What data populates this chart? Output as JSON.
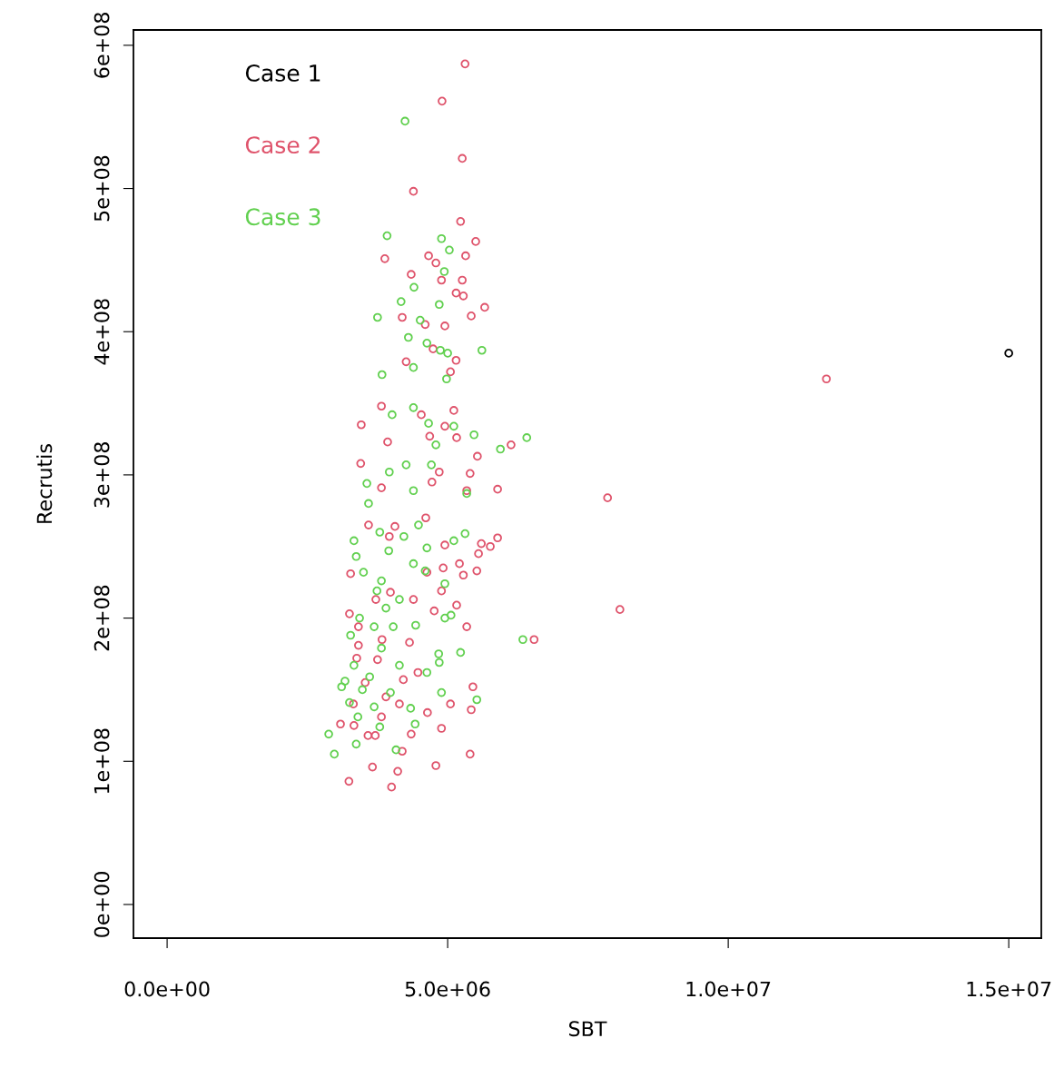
{
  "chart_data": {
    "type": "scatter",
    "xlabel": "SBT",
    "ylabel": "Recrutis",
    "xlim": [
      -600000.0,
      15580000.0
    ],
    "ylim": [
      -23500000.0,
      610700000.0
    ],
    "xticks": [
      {
        "value": 0,
        "label": "0.0e+00"
      },
      {
        "value": 5000000.0,
        "label": "5.0e+06"
      },
      {
        "value": 10000000.0,
        "label": "1.0e+07"
      },
      {
        "value": 15000000.0,
        "label": "1.5e+07"
      }
    ],
    "yticks": [
      {
        "value": 0,
        "label": "0e+00"
      },
      {
        "value": 100000000.0,
        "label": "1e+08"
      },
      {
        "value": 200000000.0,
        "label": "2e+08"
      },
      {
        "value": 300000000.0,
        "label": "3e+08"
      },
      {
        "value": 400000000.0,
        "label": "4e+08"
      },
      {
        "value": 500000000.0,
        "label": "5e+08"
      },
      {
        "value": 600000000.0,
        "label": "6e+08"
      }
    ],
    "marker": "circle",
    "legend": "top left",
    "grid": false,
    "series": [
      {
        "name": "Case 1",
        "color": "#000000",
        "x": [
          15000000.0
        ],
        "values": [
          385000000.0
        ]
      },
      {
        "name": "Case 2",
        "color": "#df536b",
        "x": [
          5310000.0,
          4900000.0,
          5260000.0,
          4390000.0,
          5230000.0,
          5500000.0,
          5320000.0,
          3880000.0,
          4660000.0,
          4790000.0,
          5260000.0,
          4350000.0,
          4890000.0,
          5150000.0,
          5280000.0,
          5660000.0,
          5420000.0,
          4190000.0,
          4950000.0,
          4600000.0,
          4740000.0,
          4260000.0,
          5150000.0,
          5050000.0,
          3820000.0,
          3460000.0,
          4530000.0,
          5110000.0,
          4950000.0,
          5160000.0,
          4680000.0,
          3930000.0,
          6130000.0,
          5530000.0,
          3450000.0,
          3820000.0,
          5400000.0,
          4850000.0,
          5890000.0,
          5340000.0,
          4720000.0,
          7850000.0,
          4060000.0,
          3590000.0,
          3960000.0,
          5890000.0,
          5760000.0,
          5600000.0,
          4950000.0,
          4610000.0,
          5550000.0,
          5210000.0,
          5520000.0,
          5280000.0,
          4920000.0,
          4630000.0,
          3270000.0,
          4890000.0,
          4390000.0,
          3980000.0,
          8070000.0,
          5160000.0,
          4760000.0,
          5340000.0,
          6540000.0,
          4320000.0,
          3830000.0,
          3750000.0,
          3380000.0,
          4470000.0,
          4210000.0,
          3530000.0,
          3900000.0,
          5050000.0,
          5420000.0,
          5450000.0,
          4640000.0,
          4140000.0,
          3320000.0,
          3330000.0,
          3820000.0,
          4890000.0,
          3710000.0,
          4350000.0,
          4190000.0,
          3580000.0,
          3090000.0,
          5400000.0,
          4790000.0,
          3660000.0,
          4110000.0,
          3240000.0,
          4000000.0,
          11750000.0,
          3410000.0,
          3410000.0,
          3720000.0,
          3250000.0
        ],
        "values": [
          587000000.0,
          561000000.0,
          521000000.0,
          498000000.0,
          477000000.0,
          463000000.0,
          453000000.0,
          451000000.0,
          453000000.0,
          448000000.0,
          436000000.0,
          440000000.0,
          436000000.0,
          427000000.0,
          425000000.0,
          417000000.0,
          411000000.0,
          410000000.0,
          404000000.0,
          405000000.0,
          388000000.0,
          379000000.0,
          380000000.0,
          372000000.0,
          348000000.0,
          335000000.0,
          342000000.0,
          345000000.0,
          334000000.0,
          326000000.0,
          327000000.0,
          323000000.0,
          321000000.0,
          313000000.0,
          308000000.0,
          291000000.0,
          301000000.0,
          302000000.0,
          290000000.0,
          289000000.0,
          295000000.0,
          284000000.0,
          264000000.0,
          265000000.0,
          257000000.0,
          256000000.0,
          250000000.0,
          252000000.0,
          251000000.0,
          270000000.0,
          245000000.0,
          238000000.0,
          233000000.0,
          230000000.0,
          235000000.0,
          232000000.0,
          231000000.0,
          219000000.0,
          213000000.0,
          218000000.0,
          206000000.0,
          209000000.0,
          205000000.0,
          194000000.0,
          185000000.0,
          183000000.0,
          185000000.0,
          171000000.0,
          172000000.0,
          162000000.0,
          157000000.0,
          155000000.0,
          145000000.0,
          140000000.0,
          136000000.0,
          152000000.0,
          134000000.0,
          140000000.0,
          140000000.0,
          125000000.0,
          131000000.0,
          123000000.0,
          118000000.0,
          119000000.0,
          107000000.0,
          118000000.0,
          126000000.0,
          105000000.0,
          97000000.0,
          96000000.0,
          93000000.0,
          86000000.0,
          82000000.0,
          367000000.0,
          181000000.0,
          194000000.0,
          213000000.0,
          203000000.0
        ]
      },
      {
        "name": "Case 3",
        "color": "#61d04f",
        "x": [
          4240000.0,
          3920000.0,
          4890000.0,
          5030000.0,
          4940000.0,
          4400000.0,
          4170000.0,
          3750000.0,
          4850000.0,
          4510000.0,
          4300000.0,
          4630000.0,
          4870000.0,
          5610000.0,
          5000000.0,
          3830000.0,
          4390000.0,
          4980000.0,
          4010000.0,
          4390000.0,
          4660000.0,
          5110000.0,
          4790000.0,
          5470000.0,
          5940000.0,
          6410000.0,
          3560000.0,
          3960000.0,
          4260000.0,
          4710000.0,
          5340000.0,
          4390000.0,
          3330000.0,
          3370000.0,
          3790000.0,
          3950000.0,
          4220000.0,
          4630000.0,
          5110000.0,
          5310000.0,
          4390000.0,
          4600000.0,
          4950000.0,
          3740000.0,
          4140000.0,
          3270000.0,
          3690000.0,
          4030000.0,
          4430000.0,
          5060000.0,
          6340000.0,
          3820000.0,
          3330000.0,
          3610000.0,
          4140000.0,
          4630000.0,
          4850000.0,
          5230000.0,
          3980000.0,
          3480000.0,
          3250000.0,
          3690000.0,
          4340000.0,
          4890000.0,
          5520000.0,
          3400000.0,
          3790000.0,
          4420000.0,
          3110000.0,
          2880000.0,
          2980000.0,
          3370000.0,
          3900000.0,
          3430000.0,
          3170000.0,
          4080000.0,
          4840000.0,
          4950000.0,
          3500000.0,
          3820000.0,
          3590000.0,
          4480000.0
        ],
        "values": [
          547000000.0,
          467000000.0,
          465000000.0,
          457000000.0,
          442000000.0,
          431000000.0,
          421000000.0,
          410000000.0,
          419000000.0,
          408000000.0,
          396000000.0,
          392000000.0,
          387000000.0,
          387000000.0,
          385000000.0,
          370000000.0,
          375000000.0,
          367000000.0,
          342000000.0,
          347000000.0,
          336000000.0,
          334000000.0,
          321000000.0,
          328000000.0,
          318000000.0,
          326000000.0,
          294000000.0,
          302000000.0,
          307000000.0,
          307000000.0,
          287000000.0,
          289000000.0,
          254000000.0,
          243000000.0,
          260000000.0,
          247000000.0,
          257000000.0,
          249000000.0,
          254000000.0,
          259000000.0,
          238000000.0,
          233000000.0,
          224000000.0,
          219000000.0,
          213000000.0,
          188000000.0,
          194000000.0,
          194000000.0,
          195000000.0,
          202000000.0,
          185000000.0,
          179000000.0,
          167000000.0,
          159000000.0,
          167000000.0,
          162000000.0,
          169000000.0,
          176000000.0,
          148000000.0,
          150000000.0,
          141000000.0,
          138000000.0,
          137000000.0,
          148000000.0,
          143000000.0,
          131000000.0,
          124000000.0,
          126000000.0,
          152000000.0,
          119000000.0,
          105000000.0,
          112000000.0,
          207000000.0,
          200000000.0,
          156000000.0,
          108000000.0,
          175000000.0,
          200000000.0,
          232000000.0,
          226000000.0,
          280000000.0,
          265000000.0
        ]
      }
    ]
  }
}
